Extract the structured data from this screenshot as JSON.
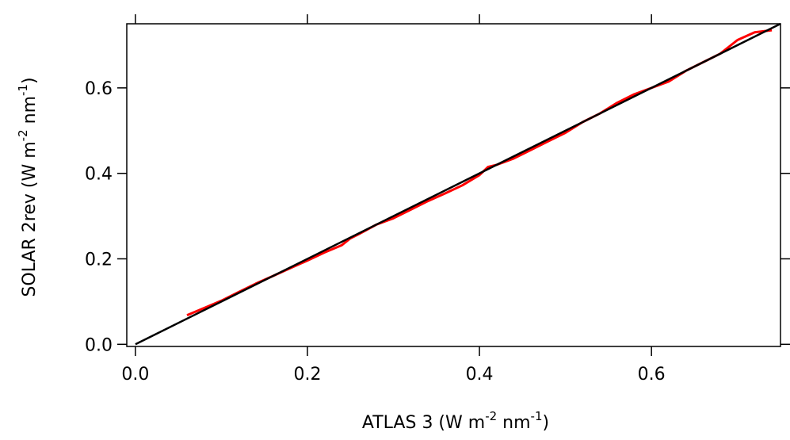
{
  "chart_data": {
    "type": "line",
    "xlabel": {
      "base": "ATLAS 3 (W m",
      "sup1": "-2",
      "mid": " nm",
      "sup2": "-1",
      "end": ")"
    },
    "ylabel": {
      "base": "SOLAR 2rev (W m",
      "sup1": "-2",
      "mid": " nm",
      "sup2": "-1",
      "end": ")"
    },
    "xlim": [
      -0.01,
      0.75
    ],
    "ylim": [
      -0.005,
      0.75
    ],
    "x_ticks": [
      0.0,
      0.2,
      0.4,
      0.6
    ],
    "x_tick_labels": [
      "0.0",
      "0.2",
      "0.4",
      "0.6"
    ],
    "y_ticks": [
      0.0,
      0.2,
      0.4,
      0.6
    ],
    "y_tick_labels": [
      "0.0",
      "0.2",
      "0.4",
      "0.6"
    ],
    "grid": false,
    "series": [
      {
        "color": "#ff0000",
        "x": [
          0.06,
          0.08,
          0.1,
          0.12,
          0.14,
          0.16,
          0.18,
          0.2,
          0.22,
          0.24,
          0.25,
          0.26,
          0.28,
          0.3,
          0.32,
          0.34,
          0.36,
          0.38,
          0.4,
          0.41,
          0.42,
          0.44,
          0.46,
          0.48,
          0.5,
          0.52,
          0.54,
          0.56,
          0.58,
          0.6,
          0.62,
          0.64,
          0.66,
          0.68,
          0.7,
          0.72,
          0.74
        ],
        "y": [
          0.068,
          0.085,
          0.102,
          0.122,
          0.142,
          0.16,
          0.178,
          0.196,
          0.215,
          0.232,
          0.248,
          0.258,
          0.28,
          0.295,
          0.315,
          0.335,
          0.353,
          0.372,
          0.396,
          0.415,
          0.42,
          0.435,
          0.455,
          0.475,
          0.495,
          0.52,
          0.54,
          0.565,
          0.585,
          0.6,
          0.615,
          0.64,
          0.66,
          0.68,
          0.712,
          0.73,
          0.735
        ]
      },
      {
        "color": "#000000",
        "x": [
          0.0,
          0.75
        ],
        "y": [
          0.0,
          0.75
        ]
      }
    ]
  }
}
